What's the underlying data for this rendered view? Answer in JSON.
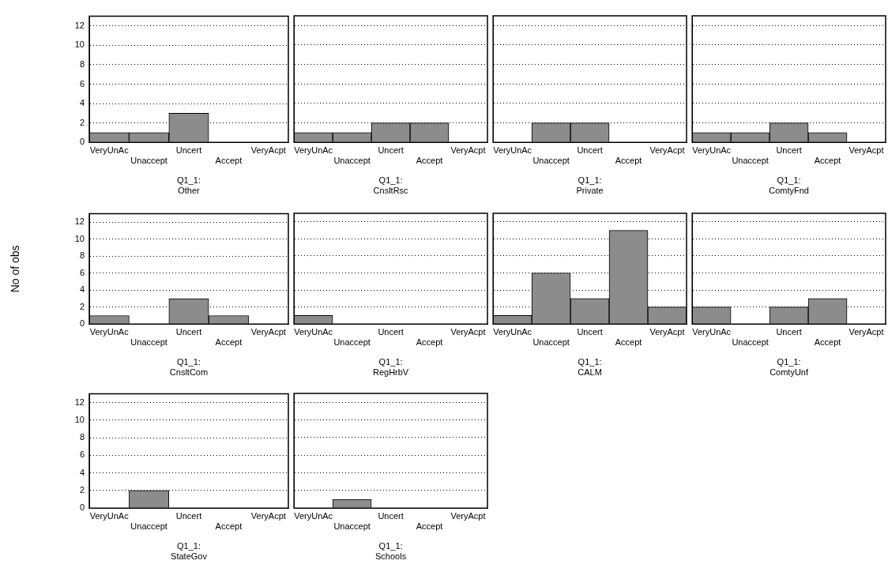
{
  "chart_data": [
    {
      "type": "bar",
      "xlabel": "Q1_1:\nOther",
      "categories": [
        "VeryUnAc",
        "Unaccept",
        "Uncert",
        "Accept",
        "VeryAcpt"
      ],
      "values": [
        1,
        1,
        3,
        0,
        0
      ],
      "color": "#8c8c8c",
      "ylim": [
        0,
        13
      ],
      "yticks": [
        0,
        2,
        4,
        6,
        8,
        10,
        12
      ],
      "grid": "y"
    },
    {
      "type": "bar",
      "xlabel": "Q1_1:\nCnsltRsc",
      "categories": [
        "VeryUnAc",
        "Unaccept",
        "Uncert",
        "Accept",
        "VeryAcpt"
      ],
      "values": [
        1,
        1,
        2,
        2,
        0
      ],
      "color": "#8c8c8c",
      "ylim": [
        0,
        13
      ],
      "yticks": [
        0,
        2,
        4,
        6,
        8,
        10,
        12
      ],
      "grid": "y",
      "tick_labels": "x"
    },
    {
      "type": "bar",
      "xlabel": "Q1_1:\nPrivate",
      "categories": [
        "VeryUnAc",
        "Unaccept",
        "Uncert",
        "Accept",
        "VeryAcpt"
      ],
      "values": [
        0,
        2,
        2,
        0,
        0
      ],
      "color": "#8c8c8c",
      "ylim": [
        0,
        13
      ],
      "yticks": [
        0,
        2,
        4,
        6,
        8,
        10,
        12
      ],
      "grid": "y",
      "tick_labels": "x"
    },
    {
      "type": "bar",
      "xlabel": "Q1_1:\nComtyFnd",
      "categories": [
        "VeryUnAc",
        "Unaccept",
        "Uncert",
        "Accept",
        "VeryAcpt"
      ],
      "values": [
        1,
        1,
        2,
        1,
        0
      ],
      "color": "#8c8c8c",
      "ylim": [
        0,
        13
      ],
      "yticks": [
        0,
        2,
        4,
        6,
        8,
        10,
        12
      ],
      "grid": "y",
      "tick_labels": "x"
    },
    {
      "type": "bar",
      "xlabel": "Q1_1:\nCnsltCom",
      "ylabel": "No of obs",
      "categories": [
        "VeryUnAc",
        "Unaccept",
        "Uncert",
        "Accept",
        "VeryAcpt"
      ],
      "values": [
        1,
        0,
        3,
        1,
        0
      ],
      "color": "#8c8c8c",
      "ylim": [
        0,
        13
      ],
      "yticks": [
        0,
        2,
        4,
        6,
        8,
        10,
        12
      ],
      "grid": "y"
    },
    {
      "type": "bar",
      "xlabel": "Q1_1:\nRegHrbV",
      "categories": [
        "VeryUnAc",
        "Unaccept",
        "Uncert",
        "Accept",
        "VeryAcpt"
      ],
      "values": [
        1,
        0,
        0,
        0,
        0
      ],
      "color": "#8c8c8c",
      "ylim": [
        0,
        13
      ],
      "yticks": [
        0,
        2,
        4,
        6,
        8,
        10,
        12
      ],
      "grid": "y",
      "tick_labels": "x"
    },
    {
      "type": "bar",
      "xlabel": "Q1_1:\nCALM",
      "categories": [
        "VeryUnAc",
        "Unaccept",
        "Uncert",
        "Accept",
        "VeryAcpt"
      ],
      "values": [
        1,
        6,
        3,
        11,
        2
      ],
      "color": "#8c8c8c",
      "ylim": [
        0,
        13
      ],
      "yticks": [
        0,
        2,
        4,
        6,
        8,
        10,
        12
      ],
      "grid": "y",
      "tick_labels": "x"
    },
    {
      "type": "bar",
      "xlabel": "Q1_1:\nComtyUnf",
      "categories": [
        "VeryUnAc",
        "Unaccept",
        "Uncert",
        "Accept",
        "VeryAcpt"
      ],
      "values": [
        2,
        0,
        2,
        3,
        0
      ],
      "color": "#8c8c8c",
      "ylim": [
        0,
        13
      ],
      "yticks": [
        0,
        2,
        4,
        6,
        8,
        10,
        12
      ],
      "grid": "y",
      "tick_labels": "x"
    },
    {
      "type": "bar",
      "xlabel": "Q1_1:\nStateGov",
      "categories": [
        "VeryUnAc",
        "Unaccept",
        "Uncert",
        "Accept",
        "VeryAcpt"
      ],
      "values": [
        0,
        2,
        0,
        0,
        0
      ],
      "color": "#8c8c8c",
      "ylim": [
        0,
        13
      ],
      "yticks": [
        0,
        2,
        4,
        6,
        8,
        10,
        12
      ],
      "grid": "y"
    },
    {
      "type": "bar",
      "xlabel": "Q1_1:\nSchools",
      "categories": [
        "VeryUnAc",
        "Unaccept",
        "Uncert",
        "Accept",
        "VeryAcpt"
      ],
      "values": [
        0,
        1,
        0,
        0,
        0
      ],
      "color": "#8c8c8c",
      "ylim": [
        0,
        13
      ],
      "yticks": [
        0,
        2,
        4,
        6,
        8,
        10,
        12
      ],
      "grid": "y",
      "tick_labels": "x"
    }
  ]
}
